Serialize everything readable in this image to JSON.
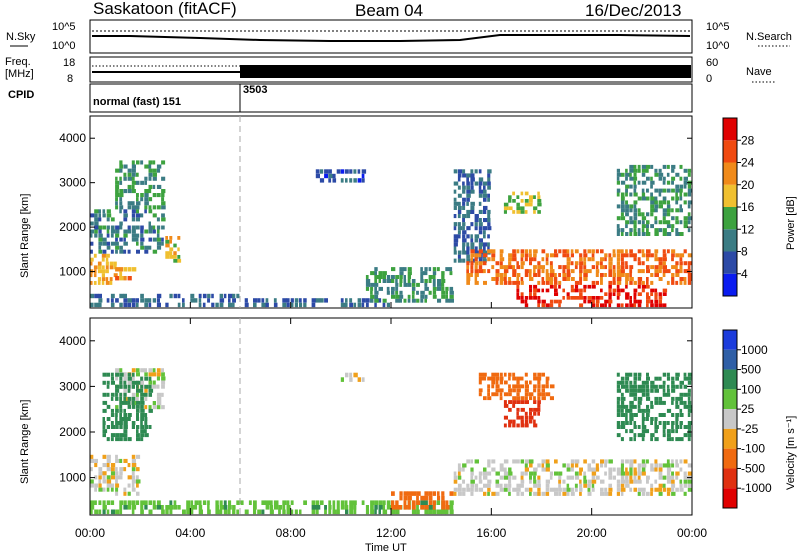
{
  "header": {
    "station": "Saskatoon (fitACF)",
    "beam": "Beam 04",
    "date": "16/Dec/2013"
  },
  "noise_panel": {
    "left_label": "N.Sky",
    "right_label": "N.Search",
    "left_ticks": [
      "10^5",
      "10^0"
    ],
    "right_ticks": [
      "10^5",
      "10^0"
    ]
  },
  "freq_panel": {
    "left_label_1": "Freq.",
    "left_label_2": "[MHz]",
    "right_label": "Nave",
    "left_ticks": [
      "18",
      "8"
    ],
    "right_ticks": [
      "60",
      "0"
    ]
  },
  "cpid_panel": {
    "label": "CPID",
    "segments": [
      {
        "text": "normal (fast) 151",
        "start_hour": 0
      },
      {
        "text": "3503",
        "start_hour": 6
      }
    ]
  },
  "axes": {
    "ylabel": "Slant Range [km]",
    "yticks": [
      "1000",
      "2000",
      "3000",
      "4000"
    ],
    "xticks": [
      "00:00",
      "04:00",
      "08:00",
      "12:00",
      "16:00",
      "20:00",
      "00:00"
    ],
    "xlabel": "Time UT"
  },
  "colorbars": {
    "power": {
      "label": "Power [dB]",
      "ticks": [
        "4",
        "8",
        "12",
        "16",
        "20",
        "24",
        "28"
      ],
      "colors": [
        "#0a1cf0",
        "#2c4aa6",
        "#3b7c84",
        "#3da23f",
        "#f0c030",
        "#f08a1a",
        "#f04a10",
        "#e00000"
      ]
    },
    "velocity": {
      "label": "Velocity [m s⁻¹]",
      "ticks": [
        "1000",
        "500",
        "100",
        "25",
        "-25",
        "-100",
        "-500",
        "-1000"
      ],
      "colors": [
        "#1c3cdc",
        "#2f5fa6",
        "#2e8a52",
        "#62c23a",
        "#c8c8c8",
        "#f0a01a",
        "#f06a10",
        "#e03010",
        "#e00000"
      ]
    }
  },
  "chart_data": {
    "type": "heatmap",
    "x_range_hours": [
      0,
      24
    ],
    "y_range_km": [
      180,
      4500
    ],
    "power_regions": [
      {
        "t": [
          0.0,
          1.1
        ],
        "r": [
          700,
          1400
        ],
        "dB": 20
      },
      {
        "t": [
          0.0,
          3.0
        ],
        "r": [
          1400,
          2400
        ],
        "dB": 10
      },
      {
        "t": [
          1.0,
          3.0
        ],
        "r": [
          2400,
          3500
        ],
        "dB": 12
      },
      {
        "t": [
          1.0,
          2.0
        ],
        "r": [
          800,
          1100
        ],
        "dB": 22
      },
      {
        "t": [
          3.0,
          3.8
        ],
        "r": [
          1200,
          1800
        ],
        "dB": 18
      },
      {
        "t": [
          0.0,
          6.0
        ],
        "r": [
          200,
          500
        ],
        "dB": 8
      },
      {
        "t": [
          6.0,
          12.0
        ],
        "r": [
          200,
          400
        ],
        "dB": 8
      },
      {
        "t": [
          9.0,
          11.0
        ],
        "r": [
          3000,
          3300
        ],
        "dB": 6
      },
      {
        "t": [
          11.0,
          14.5
        ],
        "r": [
          300,
          1100
        ],
        "dB": 12
      },
      {
        "t": [
          14.5,
          16.0
        ],
        "r": [
          1200,
          3300
        ],
        "dB": 8
      },
      {
        "t": [
          15.0,
          24.0
        ],
        "r": [
          700,
          1500
        ],
        "dB": 24
      },
      {
        "t": [
          17.0,
          23.0
        ],
        "r": [
          200,
          700
        ],
        "dB": 28
      },
      {
        "t": [
          16.5,
          18.0
        ],
        "r": [
          2300,
          2800
        ],
        "dB": 16
      },
      {
        "t": [
          21.0,
          24.0
        ],
        "r": [
          1800,
          3400
        ],
        "dB": 12
      }
    ],
    "velocity_regions": [
      {
        "t": [
          0.0,
          2.0
        ],
        "r": [
          600,
          1500
        ],
        "v": 0
      },
      {
        "t": [
          1.0,
          3.0
        ],
        "r": [
          2500,
          3400
        ],
        "v": 0
      },
      {
        "t": [
          0.5,
          2.5
        ],
        "r": [
          1800,
          3300
        ],
        "v": 200
      },
      {
        "t": [
          0.0,
          14.5
        ],
        "r": [
          200,
          500
        ],
        "v": 70
      },
      {
        "t": [
          12.0,
          14.5
        ],
        "r": [
          300,
          700
        ],
        "v": -150
      },
      {
        "t": [
          14.5,
          24.0
        ],
        "r": [
          600,
          1400
        ],
        "v": 0
      },
      {
        "t": [
          16.5,
          18.0
        ],
        "r": [
          2100,
          2700
        ],
        "v": -700
      },
      {
        "t": [
          15.5,
          18.5
        ],
        "r": [
          2700,
          3300
        ],
        "v": -150
      },
      {
        "t": [
          21.0,
          24.0
        ],
        "r": [
          1800,
          3300
        ],
        "v": 150
      },
      {
        "t": [
          10.0,
          11.0
        ],
        "r": [
          3000,
          3300
        ],
        "v": 0
      }
    ]
  }
}
